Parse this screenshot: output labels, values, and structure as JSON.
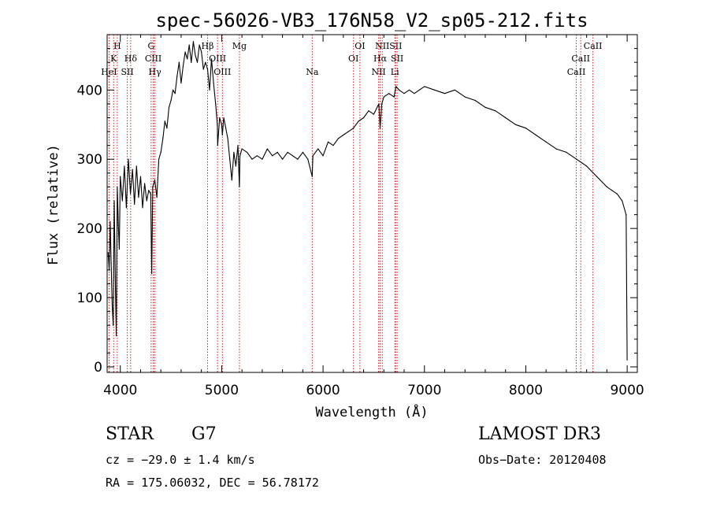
{
  "chart_data": {
    "type": "line",
    "title": "spec-56026-VB3_176N58_V2_sp05-212.fits",
    "xlabel": "Wavelength (Å)",
    "ylabel": "Flux (relative)",
    "xlim": [
      3870,
      9100
    ],
    "ylim": [
      -8,
      480
    ],
    "xticks": [
      4000,
      5000,
      6000,
      7000,
      8000,
      9000
    ],
    "yticks": [
      0,
      100,
      200,
      300,
      400
    ],
    "series": [
      {
        "x": [
          3880,
          3890,
          3900,
          3910,
          3920,
          3930,
          3940,
          3950,
          3960,
          3970,
          3980,
          3990,
          4000,
          4020,
          4040,
          4060,
          4080,
          4100,
          4120,
          4140,
          4160,
          4180,
          4200,
          4220,
          4240,
          4260,
          4280,
          4300,
          4310,
          4320,
          4340,
          4360,
          4380,
          4400,
          4420,
          4440,
          4460,
          4480,
          4500,
          4520,
          4540,
          4560,
          4580,
          4600,
          4620,
          4640,
          4660,
          4680,
          4700,
          4720,
          4740,
          4760,
          4780,
          4800,
          4820,
          4840,
          4861,
          4880,
          4900,
          4920,
          4940,
          4957,
          4960,
          4980,
          5000,
          5007,
          5020,
          5040,
          5060,
          5080,
          5100,
          5120,
          5140,
          5160,
          5175,
          5180,
          5200,
          5250,
          5300,
          5350,
          5400,
          5450,
          5500,
          5550,
          5600,
          5650,
          5700,
          5750,
          5800,
          5850,
          5893,
          5900,
          5950,
          6000,
          6050,
          6100,
          6150,
          6200,
          6250,
          6300,
          6350,
          6400,
          6450,
          6500,
          6550,
          6563,
          6580,
          6600,
          6650,
          6700,
          6720,
          6750,
          6800,
          6850,
          6900,
          6950,
          7000,
          7100,
          7200,
          7300,
          7400,
          7500,
          7600,
          7700,
          7800,
          7900,
          8000,
          8100,
          8200,
          8300,
          8400,
          8500,
          8600,
          8700,
          8800,
          8850,
          8900,
          8950,
          8990,
          9000
        ],
        "y": [
          165,
          140,
          210,
          150,
          90,
          60,
          240,
          130,
          45,
          260,
          205,
          170,
          275,
          240,
          290,
          230,
          300,
          250,
          285,
          235,
          290,
          245,
          275,
          230,
          265,
          240,
          255,
          250,
          135,
          260,
          270,
          245,
          300,
          310,
          330,
          355,
          345,
          375,
          385,
          400,
          395,
          420,
          440,
          410,
          435,
          455,
          445,
          465,
          440,
          470,
          450,
          440,
          465,
          455,
          430,
          440,
          430,
          400,
          445,
          410,
          380,
          350,
          320,
          360,
          350,
          335,
          360,
          345,
          330,
          300,
          270,
          310,
          290,
          320,
          260,
          305,
          315,
          310,
          300,
          305,
          300,
          315,
          305,
          310,
          300,
          310,
          305,
          300,
          310,
          300,
          275,
          305,
          315,
          305,
          325,
          320,
          330,
          335,
          340,
          345,
          355,
          360,
          370,
          365,
          380,
          345,
          380,
          390,
          395,
          390,
          405,
          400,
          395,
          400,
          395,
          400,
          405,
          400,
          395,
          400,
          390,
          385,
          375,
          370,
          360,
          350,
          345,
          335,
          325,
          315,
          310,
          300,
          290,
          275,
          260,
          255,
          250,
          240,
          220,
          10
        ]
      }
    ],
    "lines": [
      {
        "label": "H",
        "wavelength": 3970,
        "row": 1
      },
      {
        "label": "K",
        "wavelength": 3934,
        "row": 2
      },
      {
        "label": "HeI",
        "wavelength": 3889,
        "row": 3
      },
      {
        "label": "SII",
        "wavelength": 4069,
        "row": 3
      },
      {
        "label": "Hδ",
        "wavelength": 4102,
        "row": 2
      },
      {
        "label": "G",
        "wavelength": 4304,
        "row": 1
      },
      {
        "label": "CIII",
        "wavelength": 4325,
        "row": 2
      },
      {
        "label": "Hγ",
        "wavelength": 4341,
        "row": 3
      },
      {
        "label": "Hβ",
        "wavelength": 4861,
        "row": 1
      },
      {
        "label": "OIII",
        "wavelength": 4959,
        "row": 2
      },
      {
        "label": "OIII",
        "wavelength": 5007,
        "row": 3
      },
      {
        "label": "Mg",
        "wavelength": 5175,
        "row": 1
      },
      {
        "label": "Na",
        "wavelength": 5893,
        "row": 3
      },
      {
        "label": "OI",
        "wavelength": 6364,
        "row": 1
      },
      {
        "label": "OI",
        "wavelength": 6300,
        "row": 2
      },
      {
        "label": "NII",
        "wavelength": 6584,
        "row": 1
      },
      {
        "label": "Hα",
        "wavelength": 6563,
        "row": 2
      },
      {
        "label": "NII",
        "wavelength": 6548,
        "row": 3
      },
      {
        "label": "SII",
        "wavelength": 6717,
        "row": 1
      },
      {
        "label": "SII",
        "wavelength": 6731,
        "row": 2
      },
      {
        "label": "Li",
        "wavelength": 6708,
        "row": 3
      },
      {
        "label": "CaII",
        "wavelength": 8662,
        "row": 1
      },
      {
        "label": "CaII",
        "wavelength": 8542,
        "row": 2
      },
      {
        "label": "CaII",
        "wavelength": 8498,
        "row": 3
      }
    ]
  },
  "info": {
    "class": "STAR",
    "subclass": "G7",
    "survey": "LAMOST DR3",
    "cz": "cz = −29.0 ± 1.4 km/s",
    "obs_date": "Obs−Date: 20120408",
    "coords": "RA = 175.06032, DEC =  56.78172"
  },
  "colors": {
    "spectrum": "#000000",
    "line_marker": "#cc2222",
    "axes": "#000000"
  }
}
